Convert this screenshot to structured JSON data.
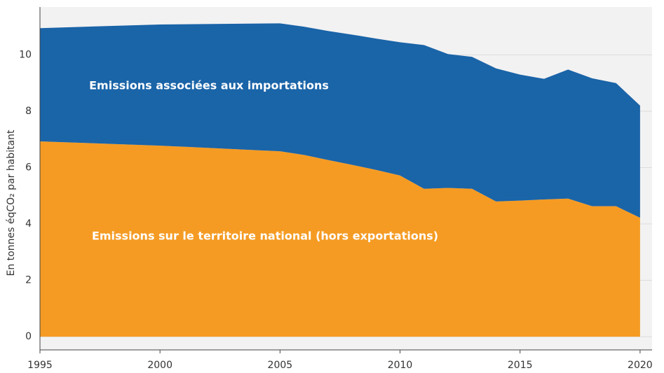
{
  "chart_data": {
    "type": "stacked_area",
    "y_label": "En tonnes éqCO₂ par habitant",
    "x": [
      1995,
      2000,
      2005,
      2006,
      2007,
      2008,
      2009,
      2010,
      2011,
      2012,
      2013,
      2014,
      2015,
      2016,
      2017,
      2018,
      2019,
      2020
    ],
    "series": [
      {
        "name": "Emissions sur le territoire national (hors exportations)",
        "color": "#f59b23",
        "values": [
          6.93,
          6.78,
          6.58,
          6.45,
          6.27,
          6.1,
          5.92,
          5.72,
          5.25,
          5.28,
          5.25,
          4.8,
          4.83,
          4.87,
          4.9,
          4.63,
          4.63,
          4.22
        ]
      },
      {
        "name": "Emissions associées aux importations",
        "color": "#1a64a8",
        "values": [
          4.02,
          4.3,
          4.54,
          4.55,
          4.58,
          4.62,
          4.66,
          4.73,
          5.1,
          4.75,
          4.68,
          4.72,
          4.47,
          4.28,
          4.58,
          4.54,
          4.37,
          3.98
        ]
      }
    ],
    "xlim": [
      1995,
      2020.5
    ],
    "xticks": [
      1995,
      2000,
      2005,
      2010,
      2015,
      2020
    ],
    "ylim": [
      -0.47,
      11.7
    ],
    "yticks": [
      0,
      2,
      4,
      6,
      8,
      10
    ],
    "grid": true,
    "background": "#f2f2f2"
  }
}
